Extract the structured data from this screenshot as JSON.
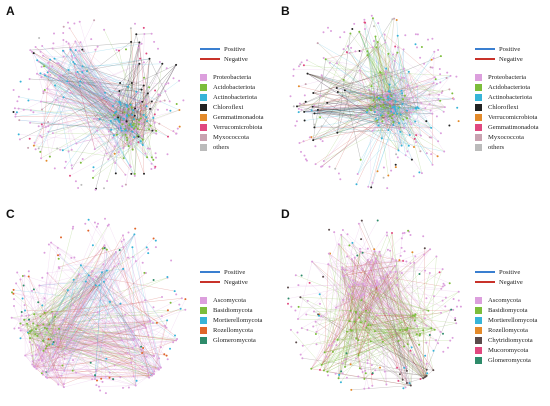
{
  "edge_legend": {
    "positive_label": "Positive",
    "negative_label": "Negative",
    "positive_color": "#3a7fd0",
    "negative_color": "#c8322a"
  },
  "panels": [
    {
      "letter": "A",
      "taxa": [
        {
          "label": "Proteobacteria",
          "color": "#dc9fdd"
        },
        {
          "label": "Acidobacteriota",
          "color": "#7cbd3b"
        },
        {
          "label": "Actinobacteriota",
          "color": "#37b4d8"
        },
        {
          "label": "Chloroflexi",
          "color": "#222222"
        },
        {
          "label": "Gemmatimonadota",
          "color": "#e38a2a"
        },
        {
          "label": "Verrucomicrobiota",
          "color": "#e0487f"
        },
        {
          "label": "Myxococcota",
          "color": "#c8a2b0"
        },
        {
          "label": "others",
          "color": "#bbbbbb"
        }
      ]
    },
    {
      "letter": "B",
      "taxa": [
        {
          "label": "Proteobacteria",
          "color": "#dc9fdd"
        },
        {
          "label": "Acidobacteriota",
          "color": "#7cbd3b"
        },
        {
          "label": "Actinobacteriota",
          "color": "#37b4d8"
        },
        {
          "label": "Chloroflexi",
          "color": "#222222"
        },
        {
          "label": "Verrucomicrobiota",
          "color": "#e38a2a"
        },
        {
          "label": "Gemmatimonadota",
          "color": "#e0487f"
        },
        {
          "label": "Myxococcota",
          "color": "#c8a2b0"
        },
        {
          "label": "others",
          "color": "#bbbbbb"
        }
      ]
    },
    {
      "letter": "C",
      "taxa": [
        {
          "label": "Ascomycota",
          "color": "#dc9fdd"
        },
        {
          "label": "Basidiomycota",
          "color": "#7cbd3b"
        },
        {
          "label": "Mortierellomycota",
          "color": "#37b4d8"
        },
        {
          "label": "Rozellomycota",
          "color": "#e0652a"
        },
        {
          "label": "Glomeromycota",
          "color": "#2e8b6a"
        }
      ]
    },
    {
      "letter": "D",
      "taxa": [
        {
          "label": "Ascomycota",
          "color": "#dc9fdd"
        },
        {
          "label": "Basidiomycota",
          "color": "#7cbd3b"
        },
        {
          "label": "Mortierellomycota",
          "color": "#37b4d8"
        },
        {
          "label": "Rozellomycota",
          "color": "#e38a2a"
        },
        {
          "label": "Chytridiomycota",
          "color": "#5a4a4a"
        },
        {
          "label": "Mucoromycota",
          "color": "#e0487f"
        },
        {
          "label": "Glomeromycota",
          "color": "#2e8b6a"
        }
      ]
    }
  ]
}
